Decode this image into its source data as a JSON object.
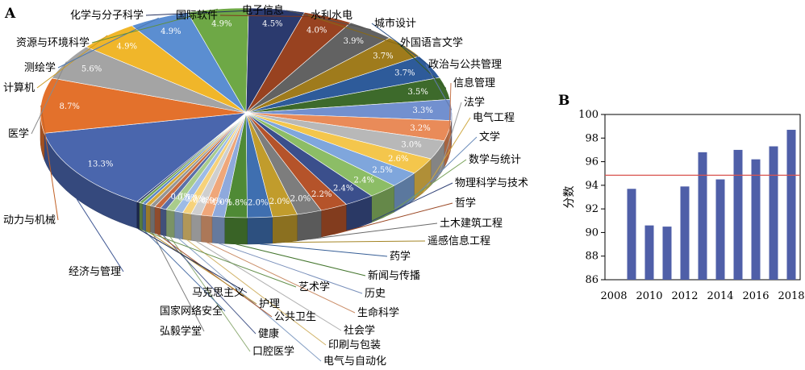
{
  "figure": {
    "panel_a": "A",
    "panel_b": "B"
  },
  "chart_data": [
    {
      "type": "pie",
      "title": "",
      "slices": [
        {
          "label": "经济与管理",
          "value": 13.3,
          "pct_label": "13.3%",
          "color": "#4a66ad"
        },
        {
          "label": "动力与机械",
          "value": 8.7,
          "pct_label": "8.7%",
          "color": "#e3712c"
        },
        {
          "label": "医学",
          "value": 5.6,
          "pct_label": "5.6%",
          "color": "#a4a4a4"
        },
        {
          "label": "计算机",
          "value": 4.9,
          "pct_label": "4.9%",
          "color": "#f0b62a"
        },
        {
          "label": "测绘学",
          "value": 4.9,
          "pct_label": "4.9%",
          "color": "#5b8ed1"
        },
        {
          "label": "资源与环境科学",
          "value": 4.9,
          "pct_label": "4.9%",
          "color": "#6ea846"
        },
        {
          "label": "化学与分子科学",
          "value": 4.5,
          "pct_label": "4.5%",
          "color": "#2b3a6e"
        },
        {
          "label": "国际软件",
          "value": 4.0,
          "pct_label": "4.0%",
          "color": "#984220"
        },
        {
          "label": "电子信息",
          "value": 3.9,
          "pct_label": "3.9%",
          "color": "#626262"
        },
        {
          "label": "水利水电",
          "value": 3.7,
          "pct_label": "3.7%",
          "color": "#9f7b1c"
        },
        {
          "label": "城市设计",
          "value": 3.7,
          "pct_label": "3.7%",
          "color": "#2e5b9a"
        },
        {
          "label": "外国语言文学",
          "value": 3.5,
          "pct_label": "3.5%",
          "color": "#3d6a2b"
        },
        {
          "label": "政治与公共管理",
          "value": 3.3,
          "pct_label": "3.3%",
          "color": "#7290cf"
        },
        {
          "label": "信息管理",
          "value": 3.2,
          "pct_label": "3.2%",
          "color": "#e98b59"
        },
        {
          "label": "法学",
          "value": 3.0,
          "pct_label": "3.0%",
          "color": "#b8b8b8"
        },
        {
          "label": "电气工程",
          "value": 2.6,
          "pct_label": "2.6%",
          "color": "#f4c64c"
        },
        {
          "label": "文学",
          "value": 2.5,
          "pct_label": "2.5%",
          "color": "#7fa6dc"
        },
        {
          "label": "数学与统计",
          "value": 2.4,
          "pct_label": "2.4%",
          "color": "#8cbd66"
        },
        {
          "label": "物理科学与技术",
          "value": 2.4,
          "pct_label": "2.4%",
          "color": "#3b4f8c"
        },
        {
          "label": "哲学",
          "value": 2.2,
          "pct_label": "2.2%",
          "color": "#b5532a"
        },
        {
          "label": "土木建筑工程",
          "value": 2.0,
          "pct_label": "2.0%",
          "color": "#7d7d7d"
        },
        {
          "label": "遥感信息工程",
          "value": 2.0,
          "pct_label": "2.0%",
          "color": "#c19c2c"
        },
        {
          "label": "药学",
          "value": 2.0,
          "pct_label": "2.0%",
          "color": "#3f6fb0"
        },
        {
          "label": "新闻与传播",
          "value": 1.8,
          "pct_label": "1.8%",
          "color": "#4f8a35"
        },
        {
          "label": "历史",
          "value": 1.0,
          "pct_label": "1.0%",
          "color": "#8ea9dc"
        },
        {
          "label": "生命科学",
          "value": 0.9,
          "pct_label": "0.9%",
          "color": "#efa77a"
        },
        {
          "label": "社会学",
          "value": 0.8,
          "pct_label": "0.8%",
          "color": "#cfcfcf"
        },
        {
          "label": "印刷与包装",
          "value": 0.7,
          "pct_label": "0.7%",
          "color": "#f6d27a"
        },
        {
          "label": "电气与自动化",
          "value": 0.7,
          "pct_label": "0.7%",
          "color": "#9dbbe6"
        },
        {
          "label": "口腔医学",
          "value": 0.7,
          "pct_label": "0.7%",
          "color": "#a9cc8c"
        },
        {
          "label": "健康",
          "value": 0.5,
          "pct_label": "",
          "color": "#5a6fa8"
        },
        {
          "label": "公共卫生",
          "value": 0.5,
          "pct_label": "",
          "color": "#c76a3e"
        },
        {
          "label": "弘毅学堂",
          "value": 0.4,
          "pct_label": "",
          "color": "#959595"
        },
        {
          "label": "护理",
          "value": 0.4,
          "pct_label": "",
          "color": "#d6a83a"
        },
        {
          "label": "国家网络安全",
          "value": 0.3,
          "pct_label": "",
          "color": "#5c86c4"
        },
        {
          "label": "艺术学",
          "value": 0.3,
          "pct_label": "",
          "color": "#74a857"
        },
        {
          "label": "马克思主义",
          "value": 0.2,
          "pct_label": "",
          "color": "#263768"
        }
      ]
    },
    {
      "type": "bar",
      "title": "",
      "categories": [
        "2008",
        "2009",
        "2010",
        "2011",
        "2012",
        "2013",
        "2014",
        "2015",
        "2016",
        "2017",
        "2018"
      ],
      "x_tick_labels": [
        "2008",
        "2010",
        "2012",
        "2014",
        "2016",
        "2018"
      ],
      "values": [
        null,
        93.7,
        90.6,
        90.5,
        93.9,
        96.8,
        94.5,
        97.0,
        96.2,
        97.3,
        98.7
      ],
      "reference_line": 94.85,
      "xlabel": "",
      "ylabel": "分数",
      "ylim": [
        86,
        100
      ],
      "yticks": [
        86,
        88,
        90,
        92,
        94,
        96,
        98,
        100
      ],
      "bar_color": "#4f5fa8",
      "reference_color": "#d9534f",
      "grid": false
    }
  ]
}
